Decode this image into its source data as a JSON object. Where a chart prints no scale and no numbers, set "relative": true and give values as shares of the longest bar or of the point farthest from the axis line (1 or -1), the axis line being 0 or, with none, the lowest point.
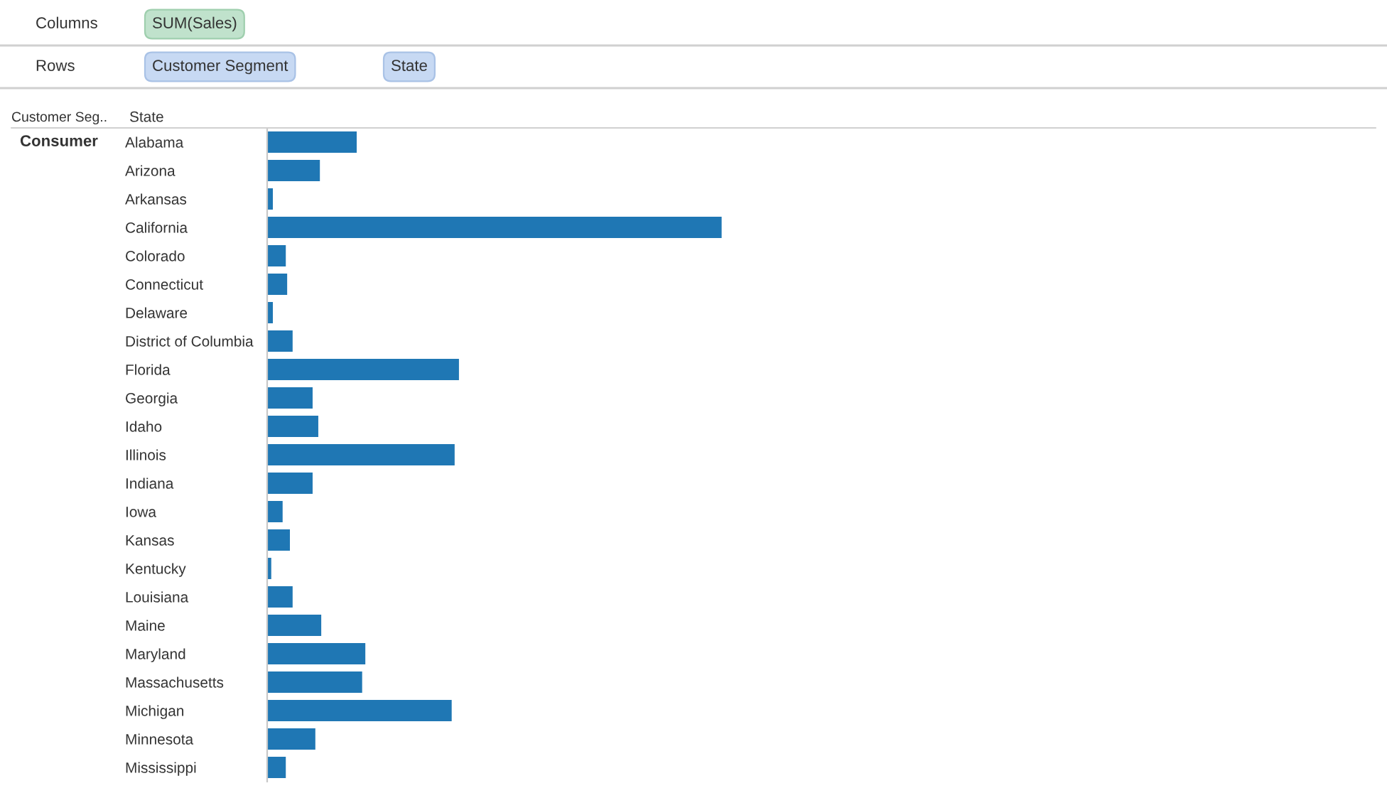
{
  "chart_data": {
    "type": "bar",
    "orientation": "horizontal",
    "relative": true,
    "color": "#1f77b4",
    "ylabel": "State",
    "annotations": [
      "Columns",
      "SUM(Sales)",
      "Rows",
      "Customer Segment",
      "State",
      "Customer Seg..",
      "Consumer"
    ],
    "categories": [
      "Alabama",
      "Arizona",
      "Arkansas",
      "California",
      "Colorado",
      "Connecticut",
      "Delaware",
      "District of Columbia",
      "Florida",
      "Georgia",
      "Idaho",
      "Illinois",
      "Indiana",
      "Iowa",
      "Kansas",
      "Kentucky",
      "Louisiana",
      "Maine",
      "Maryland",
      "Massachusetts",
      "Michigan",
      "Minnesota",
      "Mississippi"
    ],
    "values": [
      0.197,
      0.116,
      0.0125,
      1,
      0.041,
      0.044,
      0.0125,
      0.056,
      0.422,
      0.1,
      0.1125,
      0.4125,
      0.1,
      0.034,
      0.05,
      0.009,
      0.056,
      0.119,
      0.216,
      0.209,
      0.406,
      0.106,
      0.041
    ],
    "grid": false,
    "legend": false
  }
}
